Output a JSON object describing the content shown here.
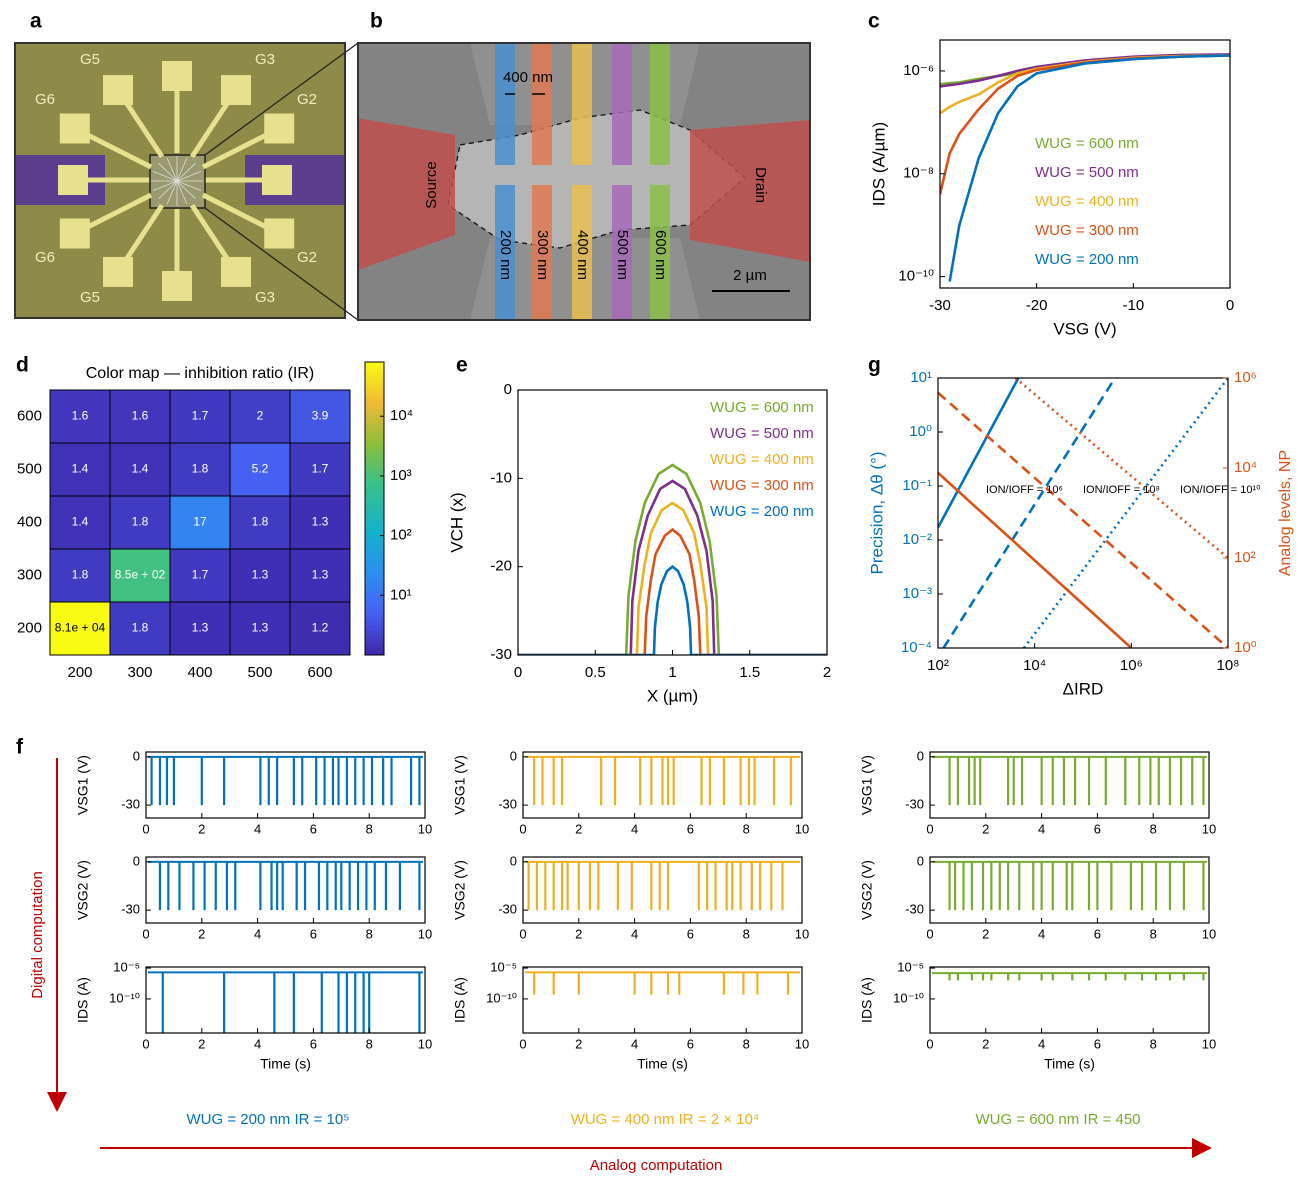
{
  "panel_labels": [
    "a",
    "b",
    "c",
    "d",
    "e",
    "f",
    "g"
  ],
  "image_a": {
    "labels": [
      "G5",
      "G3",
      "G6",
      "G2",
      "G6",
      "G2",
      "G5",
      "G3"
    ]
  },
  "image_b": {
    "gap_label": "400 nm",
    "source": "Source",
    "drain": "Drain",
    "gate_labels": [
      "200 nm",
      "300 nm",
      "400 nm",
      "500 nm",
      "600 nm"
    ],
    "scale_bar": "2 µm"
  },
  "chart_data": [
    {
      "type": "line",
      "xlabel": "VSG (V)",
      "ylabel": "IDS (A/µm)",
      "log_y": true,
      "legend": "lower right",
      "xlim": [
        -30,
        0
      ],
      "ylim": [
        6e-11,
        4e-06
      ],
      "xticks": [
        -30,
        -20,
        -10,
        0
      ],
      "yticks": [
        {
          "value": 1e-10,
          "label": "10⁻¹⁰"
        },
        {
          "value": 1e-08,
          "label": "10⁻⁸"
        },
        {
          "value": 1e-06,
          "label": "10⁻⁶"
        }
      ],
      "x": [
        -30,
        -29,
        -28,
        -26,
        -24,
        -22,
        -20,
        -15,
        -10,
        -5,
        0
      ],
      "series": [
        {
          "name": "WUG = 600 nm",
          "color": "#77ac30",
          "values": [
            5.5e-07,
            5.8e-07,
            6e-07,
            7e-07,
            8e-07,
            9e-07,
            1.05e-06,
            1.4e-06,
            1.7e-06,
            1.9e-06,
            2e-06
          ]
        },
        {
          "name": "WUG = 500 nm",
          "color": "#7e2f8e",
          "values": [
            5e-07,
            5.3e-07,
            5.6e-07,
            6.5e-07,
            8e-07,
            1e-06,
            1.2e-06,
            1.6e-06,
            1.9e-06,
            2.05e-06,
            2.1e-06
          ]
        },
        {
          "name": "WUG = 400 nm",
          "color": "#edb120",
          "values": [
            1.5e-07,
            2e-07,
            2.5e-07,
            3.5e-07,
            6e-07,
            9e-07,
            1.1e-06,
            1.5e-06,
            1.8e-06,
            1.95e-06,
            2e-06
          ]
        },
        {
          "name": "WUG = 300 nm",
          "color": "#d95319",
          "values": [
            4e-09,
            2.5e-08,
            6e-08,
            1.8e-07,
            4.5e-07,
            8e-07,
            1.05e-06,
            1.45e-06,
            1.75e-06,
            1.9e-06,
            2e-06
          ]
        },
        {
          "name": "WUG = 200 nm",
          "color": "#0072bd",
          "values": [
            null,
            8e-11,
            1e-09,
            2e-08,
            1.5e-07,
            5e-07,
            9e-07,
            1.4e-06,
            1.7e-06,
            1.9e-06,
            2e-06
          ]
        }
      ]
    },
    {
      "type": "heatmap",
      "title": "Color map — inhibition ratio (IR)",
      "x_categories": [
        200,
        300,
        400,
        500,
        600
      ],
      "y_categories": [
        600,
        500,
        400,
        300,
        200
      ],
      "values": [
        [
          1.6,
          1.6,
          1.7,
          2,
          3.9
        ],
        [
          1.4,
          1.4,
          1.8,
          5.2,
          1.7
        ],
        [
          1.4,
          1.8,
          17,
          1.8,
          1.3
        ],
        [
          1.8,
          850,
          1.7,
          1.3,
          1.3
        ],
        [
          81000,
          1.8,
          1.3,
          1.3,
          1.2
        ]
      ],
      "value_labels": [
        [
          "1.6",
          "1.6",
          "1.7",
          "2",
          "3.9"
        ],
        [
          "1.4",
          "1.4",
          "1.8",
          "5.2",
          "1.7"
        ],
        [
          "1.4",
          "1.8",
          "17",
          "1.8",
          "1.3"
        ],
        [
          "1.8",
          "8.5e + 02",
          "1.7",
          "1.3",
          "1.3"
        ],
        [
          "8.1e + 04",
          "1.8",
          "1.3",
          "1.3",
          "1.2"
        ]
      ],
      "log_color": true,
      "zlim": [
        1,
        81000
      ],
      "zticks": [
        {
          "value": 10,
          "label": "10¹"
        },
        {
          "value": 100,
          "label": "10²"
        },
        {
          "value": 1000,
          "label": "10³"
        },
        {
          "value": 10000,
          "label": "10⁴"
        }
      ]
    },
    {
      "type": "line",
      "xlabel": "X (µm)",
      "ylabel": "VCH (x)",
      "legend": "upper right",
      "xlim": [
        0,
        2
      ],
      "ylim": [
        -30,
        0
      ],
      "xticks": [
        0,
        0.5,
        1,
        1.5,
        2
      ],
      "yticks": [
        -30,
        -20,
        -10,
        0
      ],
      "series": [
        {
          "name": "WUG = 600 nm",
          "color": "#77ac30",
          "x": [
            0,
            0.7,
            0.715,
            0.76,
            0.82,
            0.91,
            1,
            1.09,
            1.18,
            1.24,
            1.285,
            1.3,
            2
          ],
          "values": [
            -30,
            -30,
            -23.3,
            -17.1,
            -12.8,
            -9.5,
            -8.5,
            -9.5,
            -12.8,
            -17.1,
            -23.3,
            -30,
            -30
          ]
        },
        {
          "name": "WUG = 500 nm",
          "color": "#7e2f8e",
          "x": [
            0,
            0.73,
            0.74,
            0.78,
            0.84,
            0.92,
            1,
            1.08,
            1.16,
            1.22,
            1.26,
            1.27,
            2
          ],
          "values": [
            -30,
            -30,
            -23.9,
            -18.2,
            -14.2,
            -11.2,
            -10.3,
            -11.2,
            -14.2,
            -18.2,
            -23.9,
            -30,
            -30
          ]
        },
        {
          "name": "WUG = 400 nm",
          "color": "#edb120",
          "x": [
            0,
            0.77,
            0.78,
            0.82,
            0.86,
            0.93,
            1,
            1.07,
            1.14,
            1.18,
            1.22,
            1.23,
            2
          ],
          "values": [
            -30,
            -30,
            -24.6,
            -19.7,
            -16.2,
            -13.6,
            -12.8,
            -13.6,
            -16.2,
            -19.7,
            -24.6,
            -30,
            -30
          ]
        },
        {
          "name": "WUG = 300 nm",
          "color": "#d95319",
          "x": [
            0,
            0.82,
            0.83,
            0.86,
            0.89,
            0.95,
            1,
            1.05,
            1.11,
            1.14,
            1.17,
            1.18,
            2
          ],
          "values": [
            -30,
            -30,
            -25.6,
            -21.5,
            -18.6,
            -16.5,
            -15.8,
            -16.5,
            -18.6,
            -21.5,
            -25.6,
            -30,
            -30
          ]
        },
        {
          "name": "WUG = 200 nm",
          "color": "#0072bd",
          "x": [
            0,
            0.88,
            0.886,
            0.904,
            0.928,
            0.964,
            1,
            1.036,
            1.072,
            1.096,
            1.114,
            1.12,
            2
          ],
          "values": [
            -30,
            -30,
            -26.9,
            -24,
            -22,
            -20.5,
            -20,
            -20.5,
            -22,
            -24,
            -26.9,
            -30,
            -30
          ]
        }
      ]
    },
    {
      "type": "line",
      "xlabel": "ΔIRD",
      "ylabel": "Precision, Δθ (°)",
      "y2label": "Analog levels, NP",
      "log_x": true,
      "log_y": true,
      "xlim": [
        100,
        100000000
      ],
      "ylim": [
        0.0001,
        10
      ],
      "y2lim": [
        1,
        1000000
      ],
      "xticks": [
        {
          "value": 100,
          "label": "10²"
        },
        {
          "value": 10000,
          "label": "10⁴"
        },
        {
          "value": 1000000,
          "label": "10⁶"
        },
        {
          "value": 100000000,
          "label": "10⁸"
        }
      ],
      "yticks": [
        {
          "value": 0.0001,
          "label": "10⁻⁴"
        },
        {
          "value": 0.001,
          "label": "10⁻³"
        },
        {
          "value": 0.01,
          "label": "10⁻²"
        },
        {
          "value": 0.1,
          "label": "10⁻¹"
        },
        {
          "value": 1,
          "label": "10⁰"
        },
        {
          "value": 10,
          "label": "10¹"
        }
      ],
      "y2ticks": [
        {
          "value": 1,
          "label": "10⁰"
        },
        {
          "value": 100,
          "label": "10²"
        },
        {
          "value": 10000,
          "label": "10⁴"
        },
        {
          "value": 1000000,
          "label": "10⁶"
        }
      ],
      "series": [
        {
          "color": "#0072bd",
          "dash": "solid",
          "x": [
            100,
            4600
          ],
          "values": [
            0.017,
            10
          ]
        },
        {
          "color": "#0072bd",
          "dash": "dashed",
          "x": [
            130,
            460000
          ],
          "values": [
            0.0001,
            10
          ]
        },
        {
          "color": "#0072bd",
          "dash": "dotted",
          "x": [
            6000,
            100000000
          ],
          "values": [
            0.0001,
            10
          ]
        },
        {
          "color": "#d95319",
          "dash": "solid",
          "axis": "y2",
          "x": [
            100,
            1000000
          ],
          "values": [
            7800,
            1
          ]
        },
        {
          "color": "#d95319",
          "dash": "dashed",
          "axis": "y2",
          "x": [
            100,
            100000000
          ],
          "values": [
            470000,
            1
          ]
        },
        {
          "color": "#d95319",
          "dash": "dotted",
          "axis": "y2",
          "x": [
            4000,
            100000000
          ],
          "values": [
            1000000,
            100
          ]
        }
      ],
      "annotations": [
        "ION/IOFF = 10⁶",
        "ION/IOFF = 10⁸",
        "ION/IOFF = 10¹⁰"
      ]
    },
    {
      "type": "spikes",
      "ylabel": "VSG1 (V)",
      "color": "#0072bd",
      "xlim": [
        0,
        10
      ],
      "ylim": [
        -38,
        3
      ],
      "xticks": [
        0,
        2,
        4,
        6,
        8,
        10
      ],
      "yticks": [
        -30,
        0
      ],
      "baseline": 0,
      "x": [
        0.2,
        0.5,
        0.75,
        1,
        2,
        2.8,
        4.1,
        4.4,
        4.7,
        5.3,
        5.6,
        6.1,
        6.4,
        6.7,
        6.9,
        7.2,
        7.5,
        7.8,
        8.1,
        8.5,
        8.8,
        9.5,
        9.8
      ],
      "values": [
        -30,
        -30,
        -30,
        -30,
        -30,
        -30,
        -30,
        -30,
        -30,
        -30,
        -30,
        -30,
        -30,
        -30,
        -30,
        -30,
        -30,
        -30,
        -30,
        -30,
        -30,
        -30,
        -30
      ]
    },
    {
      "type": "spikes",
      "ylabel": "VSG2 (V)",
      "color": "#0072bd",
      "xlim": [
        0,
        10
      ],
      "ylim": [
        -38,
        3
      ],
      "xticks": [
        0,
        2,
        4,
        6,
        8,
        10
      ],
      "yticks": [
        -30,
        0
      ],
      "baseline": 0,
      "x": [
        0.5,
        0.8,
        1.2,
        1.7,
        2.1,
        2.5,
        2.9,
        3.2,
        4.1,
        4.5,
        4.7,
        4.9,
        5.4,
        5.7,
        6.2,
        6.5,
        6.8,
        7,
        7.3,
        7.6,
        7.9,
        8.2,
        8.6,
        9.1,
        9.8
      ],
      "values": [
        -30,
        -30,
        -30,
        -30,
        -30,
        -30,
        -30,
        -30,
        -30,
        -30,
        -30,
        -30,
        -30,
        -30,
        -30,
        -30,
        -30,
        -30,
        -30,
        -30,
        -30,
        -30,
        -30,
        -30,
        -30
      ]
    },
    {
      "type": "spikes",
      "ylabel": "IDS (A)",
      "xlabel": "Time (s)",
      "log_y": true,
      "color": "#0072bd",
      "xlim": [
        0,
        10
      ],
      "ylim": [
        3e-16,
        1.5e-05
      ],
      "xticks": [
        0,
        2,
        4,
        6,
        8,
        10
      ],
      "yticks": [
        {
          "value": 1e-10,
          "label": "10⁻¹⁰"
        },
        {
          "value": 1e-05,
          "label": "10⁻⁵"
        }
      ],
      "baseline": 2e-06,
      "x": [
        0.6,
        2.8,
        4.6,
        5.3,
        6.3,
        6.9,
        7.2,
        7.5,
        7.8,
        8,
        9.8
      ],
      "values": [
        3e-16,
        3e-16,
        3e-16,
        3e-16,
        3e-16,
        3e-16,
        3e-16,
        3e-16,
        3e-16,
        3e-16,
        3e-16
      ]
    },
    {
      "type": "spikes",
      "ylabel": "VSG1 (V)",
      "color": "#edb120",
      "xlim": [
        0,
        10
      ],
      "ylim": [
        -38,
        3
      ],
      "xticks": [
        0,
        2,
        4,
        6,
        8,
        10
      ],
      "yticks": [
        -30,
        0
      ],
      "baseline": 0,
      "x": [
        0.4,
        0.7,
        1.1,
        1.4,
        2.8,
        3.3,
        4.2,
        4.6,
        5,
        5.2,
        5.4,
        6.4,
        6.7,
        7.2,
        7.8,
        8.1,
        8.3,
        9,
        9.6
      ],
      "values": [
        -30,
        -30,
        -30,
        -30,
        -30,
        -30,
        -30,
        -30,
        -30,
        -30,
        -30,
        -30,
        -30,
        -30,
        -30,
        -30,
        -30,
        -30,
        -30
      ]
    },
    {
      "type": "spikes",
      "ylabel": "VSG2 (V)",
      "color": "#edb120",
      "xlim": [
        0,
        10
      ],
      "ylim": [
        -38,
        3
      ],
      "xticks": [
        0,
        2,
        4,
        6,
        8,
        10
      ],
      "yticks": [
        -30,
        0
      ],
      "baseline": 0,
      "x": [
        0.2,
        0.5,
        0.8,
        1.1,
        1.4,
        1.6,
        2,
        2.4,
        2.7,
        3.4,
        3.9,
        4.6,
        4.9,
        5.2,
        6.3,
        6.6,
        6.9,
        7.3,
        7.5,
        7.8,
        8.2,
        8.5,
        8.9,
        9.3
      ],
      "values": [
        -30,
        -30,
        -30,
        -30,
        -30,
        -30,
        -30,
        -30,
        -30,
        -30,
        -30,
        -30,
        -30,
        -30,
        -30,
        -30,
        -30,
        -30,
        -30,
        -30,
        -30,
        -30,
        -30,
        -30
      ]
    },
    {
      "type": "spikes",
      "ylabel": "IDS (A)",
      "xlabel": "Time (s)",
      "log_y": true,
      "color": "#edb120",
      "xlim": [
        0,
        10
      ],
      "ylim": [
        3e-16,
        1.5e-05
      ],
      "xticks": [
        0,
        2,
        4,
        6,
        8,
        10
      ],
      "yticks": [
        {
          "value": 1e-10,
          "label": "10⁻¹⁰"
        },
        {
          "value": 1e-05,
          "label": "10⁻⁵"
        }
      ],
      "baseline": 2e-06,
      "x": [
        0.4,
        1.1,
        2,
        4,
        4.6,
        5.2,
        5.6,
        7.2,
        7.9,
        8.4,
        9.5
      ],
      "values": [
        5e-10,
        5e-10,
        5e-10,
        5e-10,
        5e-10,
        5e-10,
        5e-10,
        5e-10,
        5e-10,
        5e-10,
        5e-10
      ]
    },
    {
      "type": "spikes",
      "ylabel": "VSG1 (V)",
      "color": "#77ac30",
      "xlim": [
        0,
        10
      ],
      "ylim": [
        -38,
        3
      ],
      "xticks": [
        0,
        2,
        4,
        6,
        8,
        10
      ],
      "yticks": [
        -30,
        0
      ],
      "baseline": 0,
      "x": [
        0.7,
        1,
        1.4,
        1.6,
        1.8,
        2.8,
        3,
        3.3,
        4,
        4.4,
        4.8,
        5.2,
        5.7,
        6.3,
        7,
        7.5,
        7.9,
        8.2,
        8.6,
        9,
        9.4,
        9.8
      ],
      "values": [
        -30,
        -30,
        -30,
        -30,
        -30,
        -30,
        -30,
        -30,
        -30,
        -30,
        -30,
        -30,
        -30,
        -30,
        -30,
        -30,
        -30,
        -30,
        -30,
        -30,
        -30,
        -30
      ]
    },
    {
      "type": "spikes",
      "ylabel": "VSG2 (V)",
      "color": "#77ac30",
      "xlim": [
        0,
        10
      ],
      "ylim": [
        -38,
        3
      ],
      "xticks": [
        0,
        2,
        4,
        6,
        8,
        10
      ],
      "yticks": [
        -30,
        0
      ],
      "baseline": 0,
      "x": [
        0.7,
        0.9,
        1.2,
        1.5,
        1.9,
        2.2,
        2.5,
        2.8,
        3.2,
        3.7,
        4,
        4.4,
        4.9,
        5.1,
        5.7,
        6,
        6.5,
        7.2,
        7.6,
        8.1,
        8.6,
        9.1,
        9.8
      ],
      "values": [
        -30,
        -30,
        -30,
        -30,
        -30,
        -30,
        -30,
        -30,
        -30,
        -30,
        -30,
        -30,
        -30,
        -30,
        -30,
        -30,
        -30,
        -30,
        -30,
        -30,
        -30,
        -30,
        -30
      ]
    },
    {
      "type": "spikes",
      "ylabel": "IDS (A)",
      "xlabel": "Time (s)",
      "log_y": true,
      "color": "#77ac30",
      "xlim": [
        0,
        10
      ],
      "ylim": [
        3e-16,
        1.5e-05
      ],
      "xticks": [
        0,
        2,
        4,
        6,
        8,
        10
      ],
      "yticks": [
        {
          "value": 1e-10,
          "label": "10⁻¹⁰"
        },
        {
          "value": 1e-05,
          "label": "10⁻⁵"
        }
      ],
      "baseline": 1.5e-06,
      "x": [
        0.7,
        1,
        1.5,
        1.9,
        2.2,
        2.8,
        3.2,
        4,
        4.4,
        5.1,
        5.7,
        6.3,
        7,
        7.6,
        8.1,
        8.6,
        9.1,
        9.8
      ],
      "values": [
        1e-07,
        1e-07,
        1e-07,
        1e-07,
        1e-07,
        1e-07,
        1e-07,
        1e-07,
        1e-07,
        1e-07,
        1e-07,
        1e-07,
        1e-07,
        1e-07,
        1e-07,
        1e-07,
        1e-07,
        1e-07
      ]
    }
  ],
  "captions": [
    "WUG = 200 nm IR = 10⁵",
    "WUG = 400 nm IR = 2 × 10⁴",
    "WUG = 600 nm IR = 450"
  ],
  "axis_arrows": {
    "vertical": "Digital computation",
    "horizontal": "Analog computation"
  }
}
